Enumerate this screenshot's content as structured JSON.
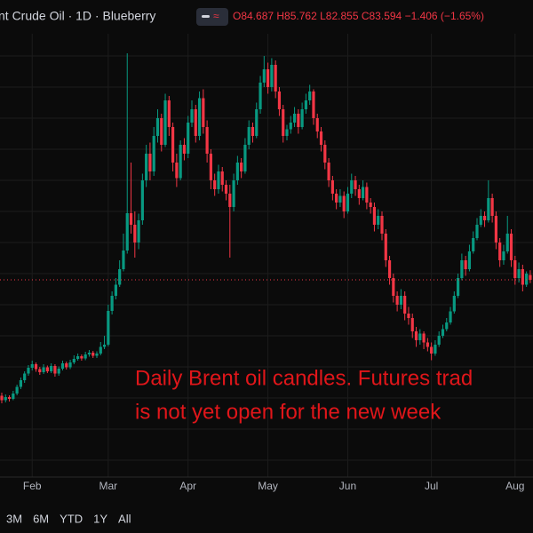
{
  "header": {
    "title": "nt Crude Oil · 1D · Blueberry",
    "open": "O84.687",
    "high": "H85.762",
    "low": "L82.855",
    "close": "C83.594",
    "change": "−1.406 (−1.65%)"
  },
  "chart_data": {
    "type": "candlestick",
    "up_color": "#089981",
    "down_color": "#f23645",
    "ylim": [
      39.6,
      146.6
    ],
    "annotation": [
      "Daily Brent oil candles. Futures trad",
      "is not yet open for the new week"
    ],
    "categories": [
      null,
      null,
      null,
      null,
      null,
      null,
      null,
      null,
      "Feb",
      null,
      null,
      null,
      null,
      null,
      null,
      null,
      null,
      null,
      null,
      null,
      null,
      null,
      null,
      null,
      null,
      null,
      null,
      null,
      "Mar",
      null,
      null,
      null,
      null,
      null,
      null,
      null,
      null,
      null,
      null,
      null,
      null,
      null,
      null,
      null,
      null,
      null,
      null,
      null,
      null,
      "Apr",
      null,
      null,
      null,
      null,
      null,
      null,
      null,
      null,
      null,
      null,
      null,
      null,
      null,
      null,
      null,
      null,
      null,
      null,
      null,
      null,
      "May",
      null,
      null,
      null,
      null,
      null,
      null,
      null,
      null,
      null,
      null,
      null,
      null,
      null,
      null,
      null,
      null,
      null,
      null,
      null,
      null,
      "Jun",
      null,
      null,
      null,
      null,
      null,
      null,
      null,
      null,
      null,
      null,
      null,
      null,
      null,
      null,
      null,
      null,
      null,
      null,
      null,
      null,
      null,
      "Jul",
      null,
      null,
      null,
      null,
      null,
      null,
      null,
      null,
      null,
      null,
      null,
      null,
      null,
      null,
      null,
      null,
      null,
      null,
      null,
      null,
      null,
      "Aug",
      null,
      null,
      null,
      null
    ],
    "values": [
      [
        57.5,
        58.2,
        55.8,
        56.5
      ],
      [
        56.5,
        57.8,
        56.0,
        57.2
      ],
      [
        57.2,
        57.6,
        56.2,
        56.8
      ],
      [
        56.8,
        58.6,
        56.5,
        58.0
      ],
      [
        58.0,
        60.0,
        57.6,
        59.5
      ],
      [
        59.5,
        61.6,
        59.0,
        61.0
      ],
      [
        61.0,
        63.0,
        60.4,
        62.5
      ],
      [
        62.5,
        64.4,
        62.0,
        63.8
      ],
      [
        63.8,
        65.4,
        63.2,
        64.6
      ],
      [
        64.6,
        65.0,
        62.9,
        63.5
      ],
      [
        63.5,
        64.0,
        62.2,
        62.8
      ],
      [
        62.8,
        64.6,
        62.4,
        63.9
      ],
      [
        63.9,
        64.3,
        62.6,
        63.0
      ],
      [
        63.0,
        64.8,
        62.6,
        64.2
      ],
      [
        64.2,
        64.6,
        61.8,
        62.5
      ],
      [
        62.5,
        64.1,
        62.0,
        63.6
      ],
      [
        63.6,
        65.4,
        63.2,
        64.8
      ],
      [
        64.8,
        65.2,
        63.4,
        63.9
      ],
      [
        63.9,
        65.6,
        63.5,
        65.0
      ],
      [
        65.0,
        66.6,
        64.6,
        65.8
      ],
      [
        65.8,
        67.0,
        65.4,
        66.4
      ],
      [
        66.4,
        66.8,
        65.4,
        65.9
      ],
      [
        65.9,
        67.4,
        65.5,
        66.8
      ],
      [
        66.8,
        67.8,
        66.3,
        67.2
      ],
      [
        67.2,
        67.6,
        66.0,
        66.5
      ],
      [
        66.5,
        67.5,
        66.0,
        67.0
      ],
      [
        67.0,
        69.6,
        66.6,
        68.5
      ],
      [
        68.5,
        71.0,
        68.0,
        69.0
      ],
      [
        69.0,
        78.0,
        68.6,
        76.6
      ],
      [
        76.6,
        81.0,
        75.8,
        80.0
      ],
      [
        80.0,
        84.0,
        79.2,
        82.5
      ],
      [
        82.5,
        88.0,
        82.0,
        86.0
      ],
      [
        86.0,
        94.0,
        85.5,
        90.2
      ],
      [
        90.2,
        134.6,
        89.5,
        98.6
      ],
      [
        98.6,
        110.0,
        94.0,
        96.0
      ],
      [
        96.0,
        99.0,
        88.6,
        92.0
      ],
      [
        92.0,
        98.5,
        90.5,
        97.0
      ],
      [
        97.0,
        107.5,
        96.0,
        106.0
      ],
      [
        106.0,
        114.0,
        104.5,
        112.0
      ],
      [
        112.0,
        114.5,
        106.0,
        108.0
      ],
      [
        108.0,
        118.0,
        107.0,
        116.0
      ],
      [
        116.0,
        122.0,
        114.5,
        120.0
      ],
      [
        120.0,
        121.0,
        112.5,
        114.0
      ],
      [
        114.0,
        125.5,
        113.5,
        124.0
      ],
      [
        124.0,
        125.0,
        116.0,
        118.0
      ],
      [
        118.0,
        119.0,
        108.0,
        110.0
      ],
      [
        110.0,
        112.0,
        104.5,
        106.5
      ],
      [
        106.5,
        115.0,
        106.0,
        114.0
      ],
      [
        114.0,
        115.5,
        110.5,
        112.0
      ],
      [
        112.0,
        120.5,
        111.0,
        119.0
      ],
      [
        119.0,
        124.0,
        118.0,
        122.0
      ],
      [
        122.0,
        123.0,
        114.5,
        116.0
      ],
      [
        116.0,
        126.0,
        115.0,
        124.5
      ],
      [
        124.5,
        126.5,
        116.5,
        118.0
      ],
      [
        118.0,
        119.5,
        110.0,
        112.0
      ],
      [
        112.0,
        113.0,
        104.0,
        106.0
      ],
      [
        106.0,
        107.5,
        102.5,
        104.0
      ],
      [
        104.0,
        109.5,
        103.0,
        108.0
      ],
      [
        108.0,
        109.0,
        103.5,
        105.0
      ],
      [
        105.0,
        106.0,
        101.5,
        103.0
      ],
      [
        103.0,
        105.0,
        88.6,
        100.0
      ],
      [
        100.0,
        107.5,
        99.0,
        106.0
      ],
      [
        106.0,
        111.5,
        105.0,
        110.0
      ],
      [
        110.0,
        111.0,
        106.5,
        108.0
      ],
      [
        108.0,
        115.5,
        107.5,
        114.0
      ],
      [
        114.0,
        119.5,
        113.0,
        118.0
      ],
      [
        118.0,
        119.0,
        114.5,
        116.0
      ],
      [
        116.0,
        123.5,
        115.5,
        122.0
      ],
      [
        122.0,
        129.5,
        121.0,
        128.0
      ],
      [
        128.0,
        134.0,
        127.0,
        131.0
      ],
      [
        131.0,
        132.5,
        125.5,
        127.0
      ],
      [
        127.0,
        133.5,
        126.0,
        132.0
      ],
      [
        132.0,
        133.0,
        124.5,
        126.0
      ],
      [
        126.0,
        127.0,
        120.5,
        122.0
      ],
      [
        122.0,
        123.0,
        114.5,
        116.0
      ],
      [
        116.0,
        118.5,
        115.0,
        117.5
      ],
      [
        117.5,
        120.5,
        116.5,
        119.0
      ],
      [
        119.0,
        122.5,
        118.0,
        121.0
      ],
      [
        121.0,
        122.0,
        116.5,
        118.0
      ],
      [
        118.0,
        123.5,
        117.5,
        122.0
      ],
      [
        122.0,
        125.5,
        121.0,
        124.0
      ],
      [
        124.0,
        127.5,
        123.0,
        126.0
      ],
      [
        126.0,
        126.5,
        118.5,
        120.0
      ],
      [
        120.0,
        121.0,
        115.5,
        117.0
      ],
      [
        117.0,
        118.0,
        112.5,
        114.0
      ],
      [
        114.0,
        115.0,
        108.5,
        110.0
      ],
      [
        110.0,
        111.0,
        104.5,
        106.0
      ],
      [
        106.0,
        107.0,
        101.5,
        103.0
      ],
      [
        103.0,
        104.0,
        99.5,
        101.0
      ],
      [
        101.0,
        104.0,
        100.0,
        102.5
      ],
      [
        102.5,
        103.5,
        97.5,
        99.0
      ],
      [
        99.0,
        104.5,
        98.5,
        103.0
      ],
      [
        103.0,
        107.5,
        102.0,
        106.0
      ],
      [
        106.0,
        107.0,
        102.5,
        104.0
      ],
      [
        104.0,
        105.0,
        100.5,
        102.0
      ],
      [
        102.0,
        106.0,
        101.5,
        104.5
      ],
      [
        104.5,
        105.5,
        99.5,
        101.0
      ],
      [
        101.0,
        102.0,
        98.5,
        100.0
      ],
      [
        100.0,
        101.0,
        94.5,
        96.0
      ],
      [
        96.0,
        99.5,
        95.0,
        98.0
      ],
      [
        98.0,
        99.0,
        92.5,
        94.0
      ],
      [
        94.0,
        95.0,
        86.5,
        88.0
      ],
      [
        88.0,
        89.0,
        82.5,
        84.0
      ],
      [
        84.0,
        85.0,
        78.5,
        80.0
      ],
      [
        80.0,
        81.0,
        76.5,
        78.0
      ],
      [
        78.0,
        81.5,
        77.0,
        80.0
      ],
      [
        80.0,
        81.0,
        74.5,
        76.0
      ],
      [
        76.0,
        77.5,
        73.5,
        75.0
      ],
      [
        75.0,
        76.0,
        70.5,
        72.0
      ],
      [
        72.0,
        73.0,
        68.5,
        70.0
      ],
      [
        70.0,
        72.5,
        69.0,
        71.5
      ],
      [
        71.5,
        72.0,
        68.0,
        69.5
      ],
      [
        69.5,
        70.5,
        67.5,
        68.5
      ],
      [
        68.5,
        69.5,
        65.5,
        67.0
      ],
      [
        67.0,
        70.0,
        66.5,
        69.0
      ],
      [
        69.0,
        72.0,
        68.5,
        71.0
      ],
      [
        71.0,
        73.5,
        70.5,
        72.5
      ],
      [
        72.5,
        75.0,
        72.0,
        74.0
      ],
      [
        74.0,
        77.5,
        73.5,
        76.5
      ],
      [
        76.5,
        81.0,
        76.0,
        80.0
      ],
      [
        80.0,
        85.0,
        79.5,
        84.0
      ],
      [
        84.0,
        89.5,
        83.5,
        88.0
      ],
      [
        88.0,
        89.0,
        84.5,
        86.0
      ],
      [
        86.0,
        91.5,
        85.5,
        90.0
      ],
      [
        90.0,
        94.5,
        89.5,
        93.0
      ],
      [
        93.0,
        97.5,
        92.5,
        96.0
      ],
      [
        96.0,
        99.5,
        95.5,
        98.0
      ],
      [
        98.0,
        99.0,
        95.5,
        97.0
      ],
      [
        97.0,
        106.0,
        96.5,
        102.0
      ],
      [
        102.0,
        103.0,
        96.5,
        98.0
      ],
      [
        98.0,
        99.0,
        90.5,
        92.0
      ],
      [
        92.0,
        93.0,
        86.5,
        88.0
      ],
      [
        88.0,
        91.5,
        87.0,
        90.0
      ],
      [
        90.0,
        98.0,
        89.5,
        94.0
      ],
      [
        94.0,
        95.0,
        86.5,
        88.0
      ],
      [
        88.0,
        89.0,
        82.5,
        84.0
      ],
      [
        84.0,
        87.5,
        83.0,
        86.0
      ],
      [
        86.0,
        87.0,
        81.0,
        82.5
      ],
      [
        82.5,
        85.5,
        82.0,
        85.0
      ],
      [
        84.687,
        85.762,
        82.855,
        83.594
      ]
    ]
  },
  "ranges": [
    "3M",
    "6M",
    "YTD",
    "1Y",
    "All"
  ]
}
